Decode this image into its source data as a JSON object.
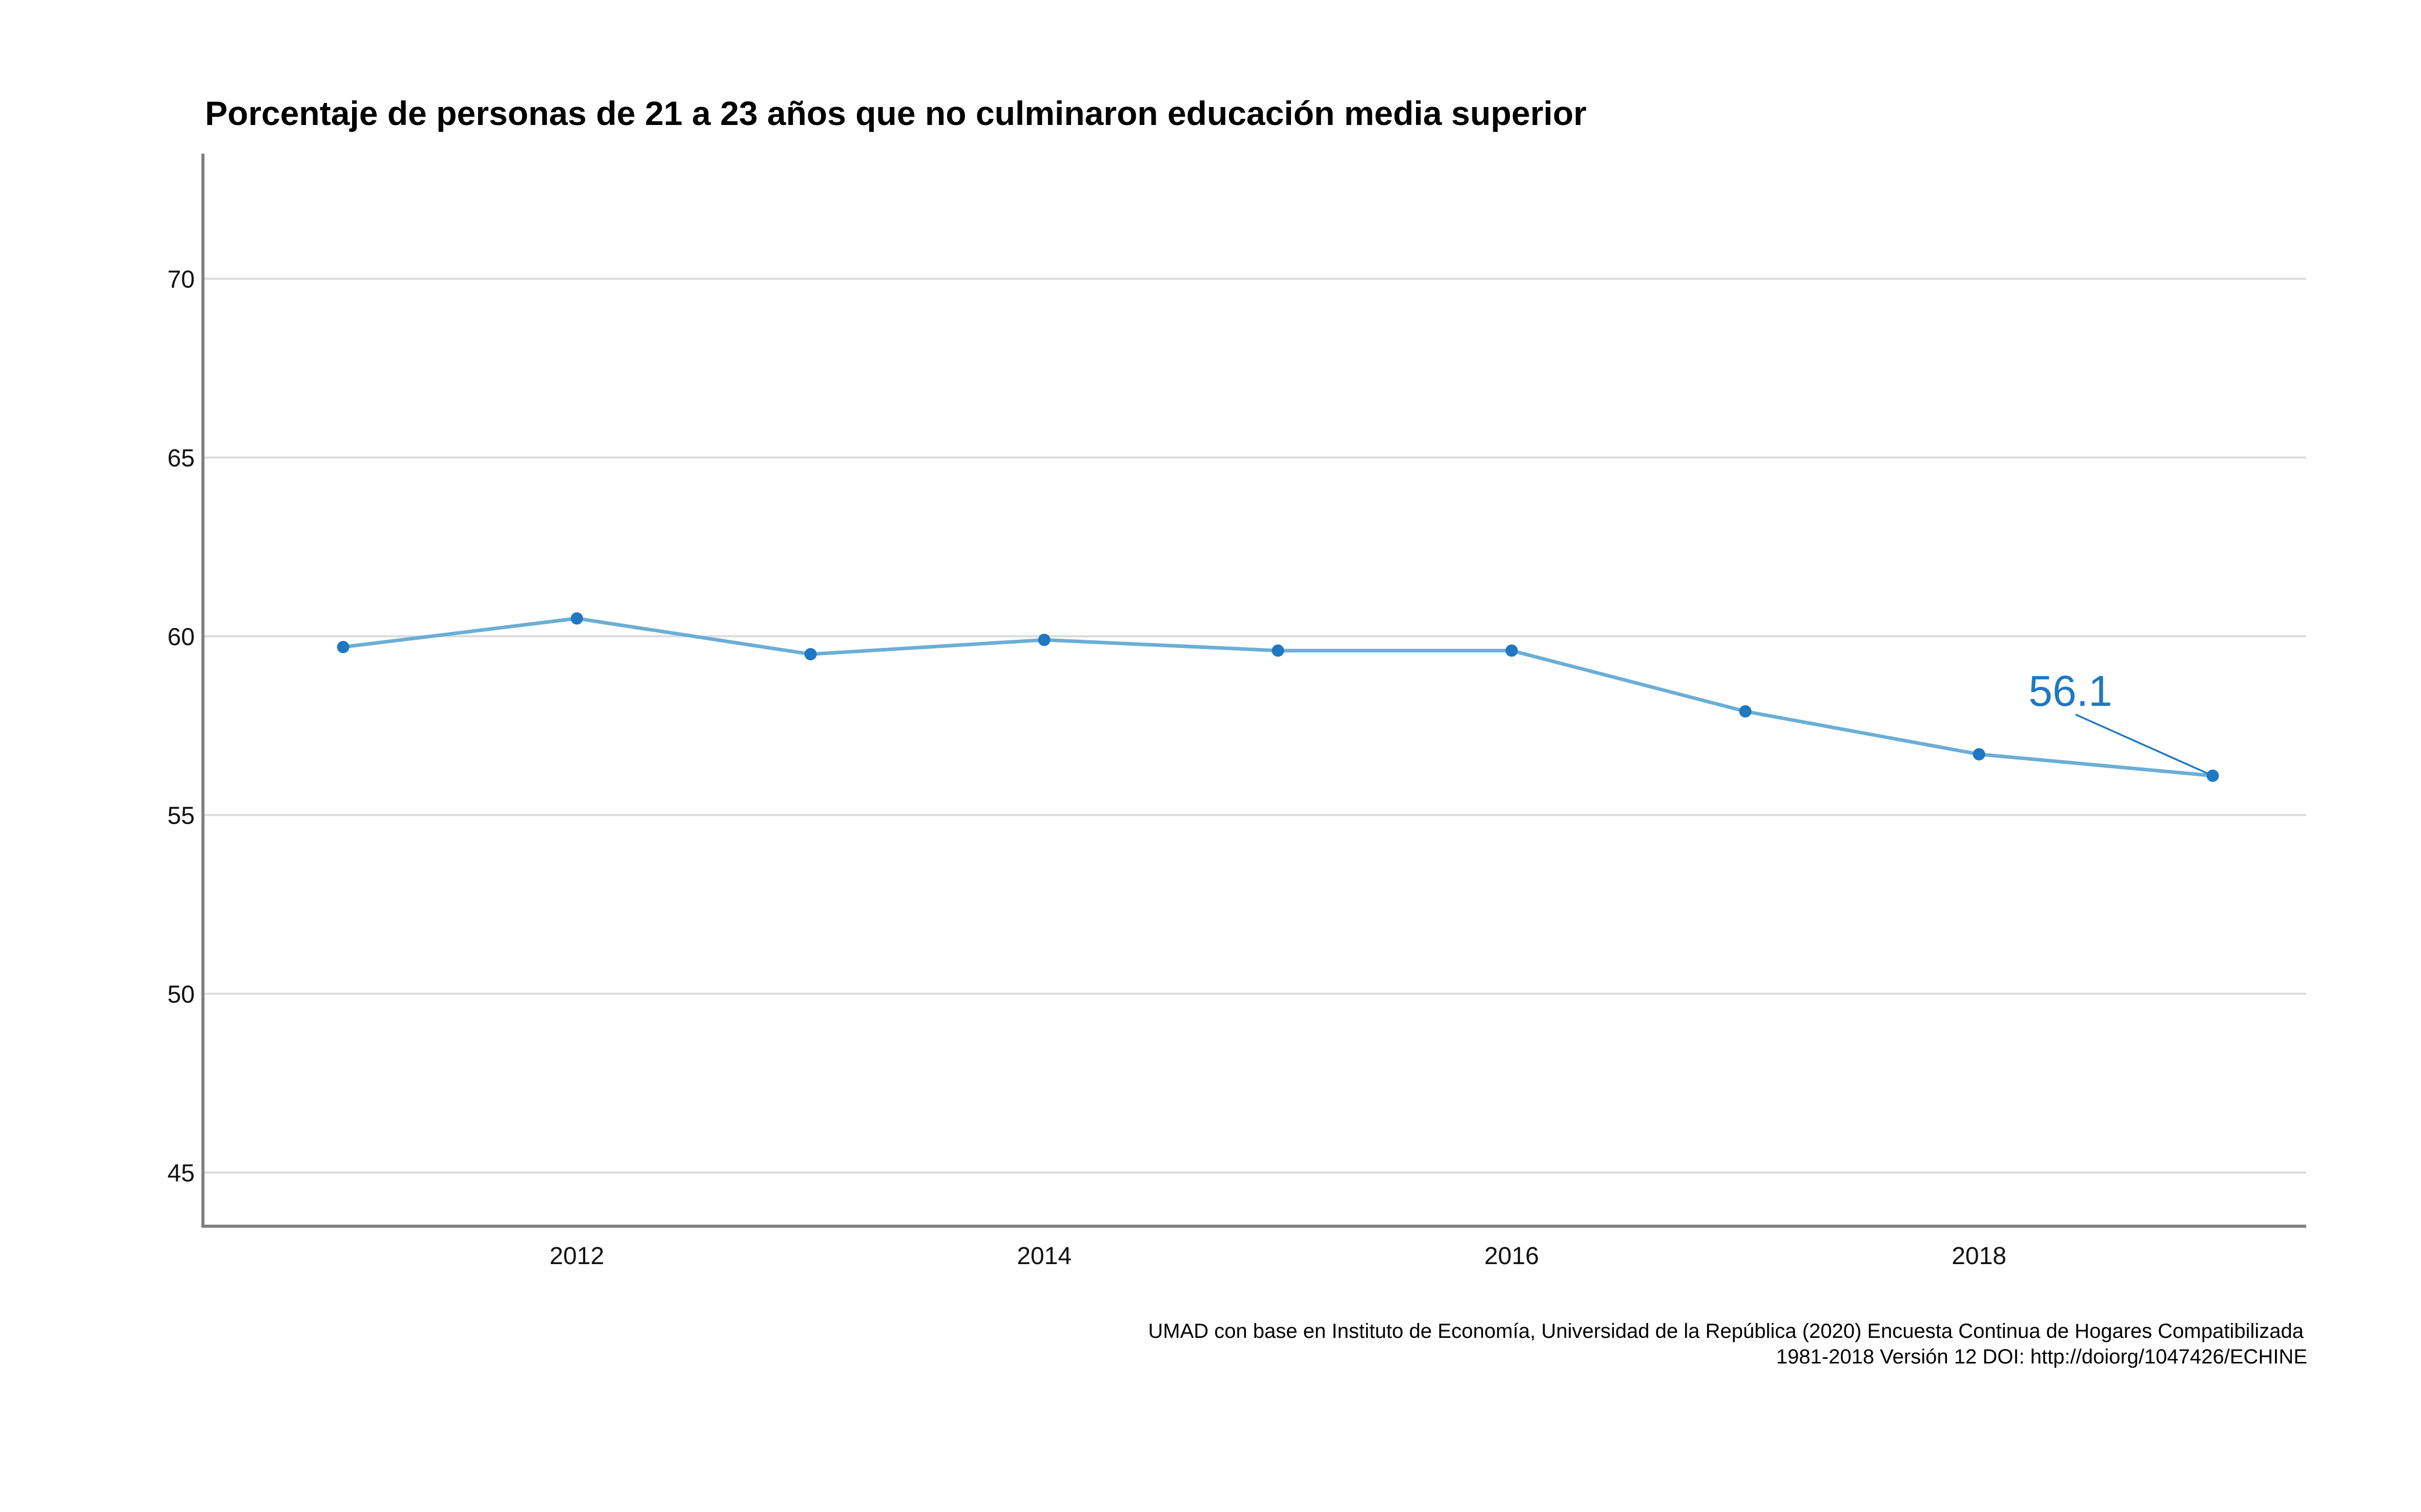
{
  "chart_data": {
    "type": "line",
    "title": "Porcentaje de personas de 21 a 23 años que no culminaron educación media superior",
    "xlabel": "",
    "ylabel": "",
    "x": [
      2011,
      2012,
      2013,
      2014,
      2015,
      2016,
      2017,
      2018,
      2019
    ],
    "series": [
      {
        "values": [
          59.7,
          60.5,
          59.5,
          59.9,
          59.6,
          59.6,
          57.9,
          56.7,
          56.1
        ]
      }
    ],
    "x_ticks": [
      "2012",
      "2014",
      "2016",
      "2018"
    ],
    "y_ticks": [
      "45",
      "50",
      "55",
      "60",
      "65",
      "70"
    ],
    "xlim": [
      2010.4,
      2019.4
    ],
    "ylim": [
      43.5,
      73.5
    ],
    "grid": "horizontal",
    "legend": "none",
    "callout": {
      "label": "56.1",
      "x": 2019,
      "y": 56.1
    },
    "caption": {
      "line1": "UMAD con base en Instituto de Economía, Universidad de la República (2020) Encuesta Continua de Hogares Compatibilizada",
      "line2": "1981-2018 Versión 12 DOI: http://doiorg/1047426/ECHINE"
    }
  },
  "colors": {
    "line": "#6baed6",
    "point": "#1f78c1",
    "callout": "#1f78c1",
    "grid": "#dcdcdc",
    "axis": "#808080"
  }
}
